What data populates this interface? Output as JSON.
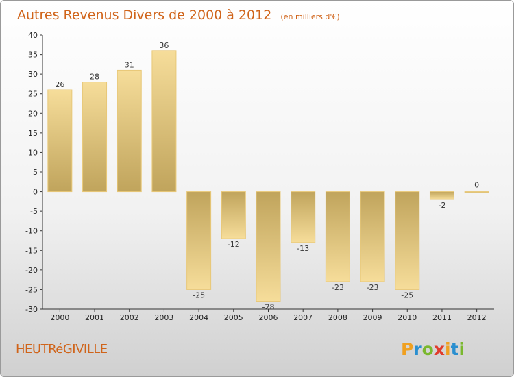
{
  "chart_data": {
    "type": "bar",
    "title": "Autres Revenus Divers de 2000 à 2012",
    "unit": "(en milliers d'€)",
    "categories": [
      "2000",
      "2001",
      "2002",
      "2003",
      "2004",
      "2005",
      "2006",
      "2007",
      "2008",
      "2009",
      "2010",
      "2011",
      "2012"
    ],
    "values": [
      26,
      28,
      31,
      36,
      -25,
      -12,
      -28,
      -13,
      -23,
      -23,
      -25,
      -2,
      0
    ],
    "ylim": [
      -30,
      40
    ],
    "yticks": [
      40,
      35,
      30,
      25,
      20,
      15,
      10,
      5,
      0,
      -5,
      -10,
      -15,
      -20,
      -25,
      -30
    ],
    "grid": false,
    "legend": "none",
    "colors": {
      "bar_light": "#f6dd9a",
      "bar_dark": "#c0a45c",
      "title": "#d0641a"
    }
  },
  "commune": "HEUTRéGIVILLE",
  "brand": {
    "letters": [
      "P",
      "r",
      "o",
      "x",
      "i",
      "t",
      "i"
    ],
    "colors": [
      "#f0a020",
      "#2a8fd0",
      "#7ab82e",
      "#e03c2c",
      "#f0a020",
      "#2a8fd0",
      "#7ab82e"
    ]
  }
}
